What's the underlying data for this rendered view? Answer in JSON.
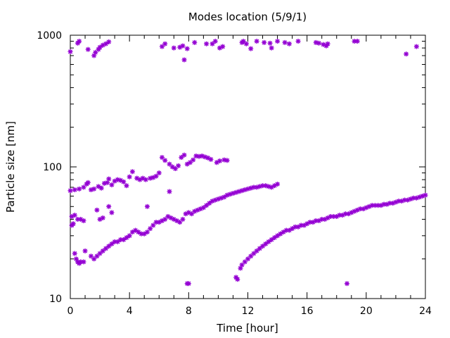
{
  "chart_data": {
    "type": "scatter",
    "title": "Modes location (5/9/1)",
    "xlabel": "Time [hour]",
    "ylabel": "Particle size [nm]",
    "xlim": [
      0,
      24
    ],
    "ylim": [
      10,
      1000
    ],
    "yscale": "log",
    "x_ticks": [
      0,
      4,
      8,
      12,
      16,
      20,
      24
    ],
    "x_tick_labels": [
      "0",
      "4",
      "8",
      "12",
      "16",
      "20",
      "24"
    ],
    "y_ticks": [
      10,
      100,
      1000
    ],
    "y_tick_labels": [
      "10",
      "100",
      "1000"
    ],
    "grid": false,
    "legend": "none",
    "marker_color": "#9400d3",
    "series": [
      {
        "points": [
          [
            0.0,
            750
          ],
          [
            0.5,
            870
          ],
          [
            0.6,
            900
          ],
          [
            1.2,
            780
          ],
          [
            1.6,
            700
          ],
          [
            1.7,
            740
          ],
          [
            1.9,
            780
          ],
          [
            2.0,
            810
          ],
          [
            2.2,
            840
          ],
          [
            2.4,
            860
          ],
          [
            2.6,
            890
          ],
          [
            6.2,
            820
          ],
          [
            6.4,
            860
          ],
          [
            7.0,
            800
          ],
          [
            7.4,
            810
          ],
          [
            7.6,
            830
          ],
          [
            7.7,
            650
          ],
          [
            7.9,
            790
          ],
          [
            8.4,
            880
          ],
          [
            9.2,
            860
          ],
          [
            9.6,
            860
          ],
          [
            9.8,
            900
          ],
          [
            10.1,
            800
          ],
          [
            10.3,
            820
          ],
          [
            11.6,
            880
          ],
          [
            11.7,
            900
          ],
          [
            11.9,
            860
          ],
          [
            12.2,
            790
          ],
          [
            12.6,
            900
          ],
          [
            13.1,
            880
          ],
          [
            13.5,
            870
          ],
          [
            13.6,
            800
          ],
          [
            14.0,
            900
          ],
          [
            14.5,
            880
          ],
          [
            14.8,
            860
          ],
          [
            15.4,
            900
          ],
          [
            16.6,
            880
          ],
          [
            16.8,
            870
          ],
          [
            17.1,
            850
          ],
          [
            17.3,
            830
          ],
          [
            17.4,
            860
          ],
          [
            19.2,
            900
          ],
          [
            19.4,
            900
          ],
          [
            22.7,
            720
          ],
          [
            23.4,
            820
          ],
          [
            0.0,
            66
          ],
          [
            0.3,
            67
          ],
          [
            0.6,
            68
          ],
          [
            0.9,
            70
          ],
          [
            1.1,
            74
          ],
          [
            1.2,
            76
          ],
          [
            1.4,
            67
          ],
          [
            1.6,
            68
          ],
          [
            1.9,
            71
          ],
          [
            2.1,
            69
          ],
          [
            2.3,
            75
          ],
          [
            2.5,
            76
          ],
          [
            2.6,
            81
          ],
          [
            2.8,
            73
          ],
          [
            3.0,
            78
          ],
          [
            3.2,
            80
          ],
          [
            3.4,
            79
          ],
          [
            3.6,
            77
          ],
          [
            3.8,
            72
          ],
          [
            4.0,
            84
          ],
          [
            4.2,
            92
          ],
          [
            4.5,
            82
          ],
          [
            4.7,
            80
          ],
          [
            4.9,
            82
          ],
          [
            5.1,
            80
          ],
          [
            5.4,
            82
          ],
          [
            5.6,
            83
          ],
          [
            5.8,
            85
          ],
          [
            6.0,
            90
          ],
          [
            6.2,
            118
          ],
          [
            6.4,
            112
          ],
          [
            6.7,
            105
          ],
          [
            6.9,
            100
          ],
          [
            7.1,
            97
          ],
          [
            7.3,
            102
          ],
          [
            7.5,
            118
          ],
          [
            7.7,
            123
          ],
          [
            7.9,
            105
          ],
          [
            8.1,
            108
          ],
          [
            8.3,
            113
          ],
          [
            8.5,
            121
          ],
          [
            8.7,
            120
          ],
          [
            8.9,
            121
          ],
          [
            9.1,
            119
          ],
          [
            9.3,
            117
          ],
          [
            9.5,
            114
          ],
          [
            9.9,
            108
          ],
          [
            10.1,
            111
          ],
          [
            10.4,
            113
          ],
          [
            10.6,
            112
          ],
          [
            0.1,
            36
          ],
          [
            0.2,
            37
          ],
          [
            0.3,
            22
          ],
          [
            0.4,
            20
          ],
          [
            0.5,
            19
          ],
          [
            0.6,
            18.5
          ],
          [
            0.7,
            19
          ],
          [
            0.9,
            19
          ],
          [
            0.1,
            42
          ],
          [
            0.3,
            43
          ],
          [
            0.5,
            40
          ],
          [
            0.7,
            40
          ],
          [
            0.9,
            39
          ],
          [
            1.0,
            23
          ],
          [
            1.4,
            21
          ],
          [
            1.6,
            20
          ],
          [
            1.8,
            21
          ],
          [
            2.0,
            22
          ],
          [
            2.2,
            23
          ],
          [
            2.4,
            24
          ],
          [
            2.6,
            25
          ],
          [
            2.8,
            26
          ],
          [
            3.0,
            27
          ],
          [
            3.2,
            27
          ],
          [
            3.4,
            28
          ],
          [
            3.6,
            28
          ],
          [
            3.8,
            29
          ],
          [
            4.0,
            30
          ],
          [
            4.2,
            32
          ],
          [
            4.4,
            33
          ],
          [
            4.6,
            32
          ],
          [
            4.8,
            31
          ],
          [
            5.0,
            31
          ],
          [
            5.2,
            32
          ],
          [
            5.4,
            34
          ],
          [
            5.6,
            36
          ],
          [
            5.8,
            38
          ],
          [
            6.0,
            38
          ],
          [
            6.2,
            39
          ],
          [
            6.4,
            40
          ],
          [
            6.6,
            42
          ],
          [
            6.8,
            41
          ],
          [
            7.0,
            40
          ],
          [
            7.2,
            39
          ],
          [
            7.4,
            38
          ],
          [
            7.6,
            40
          ],
          [
            7.8,
            44
          ],
          [
            8.0,
            45
          ],
          [
            8.2,
            44
          ],
          [
            8.4,
            46
          ],
          [
            8.6,
            47
          ],
          [
            8.8,
            48
          ],
          [
            9.0,
            49
          ],
          [
            9.2,
            51
          ],
          [
            9.4,
            53
          ],
          [
            9.6,
            55
          ],
          [
            9.8,
            56
          ],
          [
            10.0,
            57
          ],
          [
            10.2,
            58
          ],
          [
            10.4,
            59
          ],
          [
            10.6,
            61
          ],
          [
            10.8,
            62
          ],
          [
            11.0,
            63
          ],
          [
            11.2,
            64
          ],
          [
            11.4,
            65
          ],
          [
            11.6,
            66
          ],
          [
            11.8,
            67
          ],
          [
            12.0,
            68
          ],
          [
            12.2,
            69
          ],
          [
            12.4,
            70
          ],
          [
            12.6,
            70
          ],
          [
            12.8,
            71
          ],
          [
            13.0,
            72
          ],
          [
            13.2,
            72
          ],
          [
            13.4,
            71
          ],
          [
            13.6,
            70
          ],
          [
            13.8,
            72
          ],
          [
            14.0,
            74
          ],
          [
            1.8,
            47
          ],
          [
            2.0,
            40
          ],
          [
            2.2,
            41
          ],
          [
            2.6,
            50
          ],
          [
            2.8,
            45
          ],
          [
            5.2,
            50
          ],
          [
            6.7,
            65
          ],
          [
            7.9,
            13
          ],
          [
            8.0,
            13
          ],
          [
            11.2,
            14.5
          ],
          [
            11.3,
            14
          ],
          [
            11.5,
            17
          ],
          [
            11.6,
            18
          ],
          [
            11.8,
            19
          ],
          [
            12.0,
            20
          ],
          [
            12.2,
            21
          ],
          [
            12.4,
            22
          ],
          [
            12.6,
            23
          ],
          [
            12.8,
            24
          ],
          [
            13.0,
            25
          ],
          [
            13.2,
            26
          ],
          [
            13.4,
            27
          ],
          [
            13.6,
            28
          ],
          [
            13.8,
            29
          ],
          [
            14.0,
            30
          ],
          [
            14.2,
            31
          ],
          [
            14.4,
            32
          ],
          [
            14.6,
            33
          ],
          [
            14.8,
            33
          ],
          [
            15.0,
            34
          ],
          [
            15.2,
            35
          ],
          [
            15.4,
            35
          ],
          [
            15.6,
            36
          ],
          [
            15.8,
            36
          ],
          [
            16.0,
            37
          ],
          [
            16.2,
            38
          ],
          [
            16.4,
            38
          ],
          [
            16.6,
            39
          ],
          [
            16.8,
            39
          ],
          [
            17.0,
            40
          ],
          [
            17.2,
            40
          ],
          [
            17.4,
            41
          ],
          [
            17.6,
            42
          ],
          [
            17.8,
            42
          ],
          [
            18.0,
            42
          ],
          [
            18.2,
            43
          ],
          [
            18.4,
            43
          ],
          [
            18.6,
            44
          ],
          [
            18.8,
            44
          ],
          [
            19.0,
            45
          ],
          [
            19.2,
            46
          ],
          [
            19.4,
            47
          ],
          [
            19.6,
            48
          ],
          [
            19.8,
            48
          ],
          [
            20.0,
            49
          ],
          [
            20.2,
            50
          ],
          [
            20.4,
            51
          ],
          [
            20.6,
            51
          ],
          [
            20.8,
            51
          ],
          [
            21.0,
            51
          ],
          [
            21.2,
            52
          ],
          [
            21.4,
            52
          ],
          [
            21.6,
            53
          ],
          [
            21.8,
            53
          ],
          [
            22.0,
            54
          ],
          [
            22.2,
            55
          ],
          [
            22.4,
            55
          ],
          [
            22.6,
            56
          ],
          [
            22.8,
            56
          ],
          [
            23.0,
            57
          ],
          [
            23.2,
            58
          ],
          [
            23.4,
            58
          ],
          [
            23.6,
            59
          ],
          [
            23.8,
            60
          ],
          [
            24.0,
            61
          ],
          [
            18.7,
            13
          ]
        ]
      }
    ]
  }
}
